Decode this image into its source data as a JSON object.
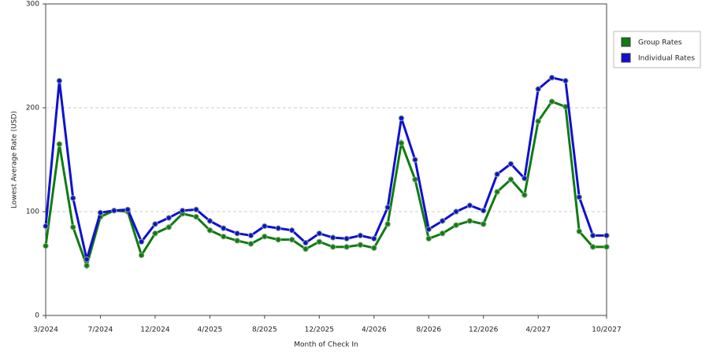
{
  "chart_data": {
    "type": "line",
    "x_label": "Month of Check In",
    "y_label": "Lowest Average Rate (USD)",
    "categories": [
      "3/2024",
      null,
      null,
      null,
      "7/2024",
      null,
      null,
      null,
      "12/2024",
      null,
      null,
      null,
      "4/2025",
      null,
      null,
      null,
      "8/2025",
      null,
      null,
      null,
      "12/2025",
      null,
      null,
      null,
      "4/2026",
      null,
      null,
      null,
      "8/2026",
      null,
      null,
      null,
      "12/2026",
      null,
      null,
      null,
      "4/2027",
      null,
      null,
      null,
      null,
      "10/2027"
    ],
    "series": [
      {
        "name": "Group Rates",
        "color": "#107c10",
        "values": [
          67,
          165,
          85,
          48,
          95,
          101,
          100,
          58,
          79,
          85,
          98,
          95,
          82,
          76,
          72,
          69,
          76,
          73,
          73,
          64,
          71,
          66,
          66,
          68,
          65,
          88,
          166,
          131,
          74,
          79,
          87,
          91,
          88,
          119,
          131,
          116,
          187,
          206,
          201,
          81,
          66,
          66
        ]
      },
      {
        "name": "Individual Rates",
        "color": "#1010d0",
        "values": [
          86,
          226,
          113,
          54,
          99,
          101,
          102,
          71,
          88,
          94,
          101,
          102,
          91,
          84,
          79,
          77,
          86,
          84,
          82,
          70,
          79,
          75,
          74,
          77,
          74,
          104,
          190,
          150,
          83,
          91,
          100,
          106,
          101,
          136,
          146,
          132,
          218,
          229,
          226,
          114,
          77,
          77
        ]
      }
    ],
    "ylim": [
      0,
      300
    ],
    "yticks": [
      0,
      100,
      200,
      300
    ],
    "grid": true,
    "legend": "right"
  }
}
